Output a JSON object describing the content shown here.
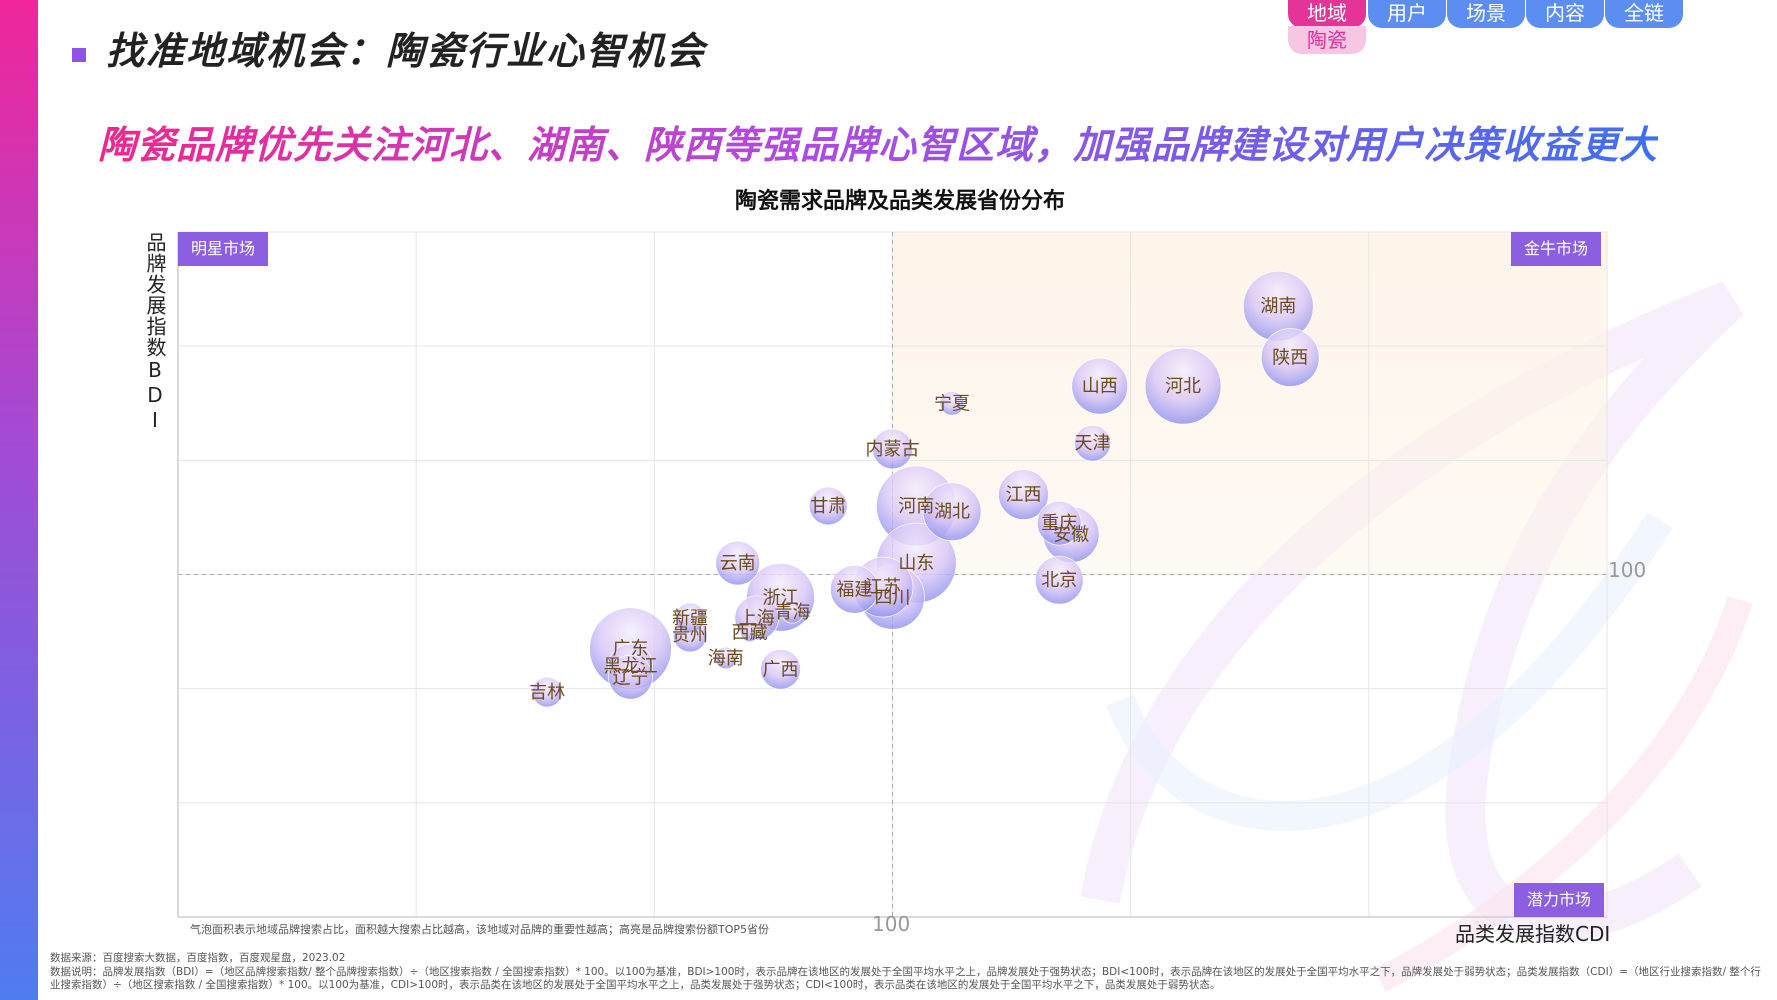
{
  "page_title": "找准地域机会：陶瓷行业心智机会",
  "headline": "陶瓷品牌优先关注河北、湖南、陕西等强品牌心智区域，加强品牌建设对用户决策收益更大",
  "nav": {
    "tabs": [
      "地域",
      "用户",
      "场景",
      "内容",
      "全链"
    ],
    "active": "地域",
    "sub_tab": "陶瓷",
    "colors": {
      "active": "#e43497",
      "inactive": "#5b8ef0",
      "sub_bg": "#f6c6e3"
    }
  },
  "quadrants": {
    "top_left": "明星市场",
    "top_right": "金牛市场",
    "bottom_right": "潜力市场"
  },
  "bubble_note": "气泡面积表示地域品牌搜索占比，面积越大搜索占比越高，该地域对品牌的重要性越高；高亮是品牌搜索份额TOP5省份",
  "footer": {
    "source": "数据来源：百度搜索大数据，百度指数，百度观星盘，2023.02",
    "note": "数据说明：品牌发展指数（BDI）=（地区品牌搜索指数/ 整个品牌搜索指数）÷（地区搜索指数 / 全国搜索指数）* 100。以100为基准，BDI>100时，表示品牌在该地区的发展处于全国平均水平之上，品牌发展处于强势状态；BDI<100时，表示品牌在该地区的发展处于全国平均水平之下，品牌发展处于弱势状态；品类发展指数（CDI）=（地区行业搜索指数/ 整个行业搜索指数）÷（地区搜索指数 / 全国搜索指数）* 100。以100为基准，CDI>100时，表示品类在该地区的发展处于全国平均水平之上，品类发展处于强势状态；CDI<100时，表示品类在该地区的发展处于全国平均水平之下，品类发展处于弱势状态。"
  },
  "chart_data": {
    "type": "scatter",
    "title": "陶瓷需求品牌及品类发展省份分布",
    "xlabel": "品类发展指数CDI",
    "ylabel": "品牌发展指数BDI",
    "reference_x": 100,
    "reference_y": 100,
    "reference_x_label": "100",
    "reference_y_label": "100",
    "xlim": [
      70,
      130
    ],
    "ylim": [
      70,
      130
    ],
    "grid": true,
    "series": [
      {
        "points": [
          {
            "name": "湖南",
            "x": 116.2,
            "y": 123.5,
            "size": 35
          },
          {
            "name": "陕西",
            "x": 116.7,
            "y": 119.0,
            "size": 29
          },
          {
            "name": "河北",
            "x": 112.2,
            "y": 116.5,
            "size": 38
          },
          {
            "name": "山西",
            "x": 108.7,
            "y": 116.5,
            "size": 28
          },
          {
            "name": "宁夏",
            "x": 102.5,
            "y": 115.0,
            "size": 12
          },
          {
            "name": "天津",
            "x": 108.4,
            "y": 111.5,
            "size": 18
          },
          {
            "name": "内蒙古",
            "x": 100.0,
            "y": 111.0,
            "size": 20
          },
          {
            "name": "江西",
            "x": 105.5,
            "y": 107.0,
            "size": 25
          },
          {
            "name": "甘肃",
            "x": 97.3,
            "y": 106.0,
            "size": 19
          },
          {
            "name": "河南",
            "x": 101.0,
            "y": 106.0,
            "size": 40
          },
          {
            "name": "湖北",
            "x": 102.5,
            "y": 105.5,
            "size": 29
          },
          {
            "name": "重庆",
            "x": 107.0,
            "y": 104.5,
            "size": 22
          },
          {
            "name": "安徽",
            "x": 107.5,
            "y": 103.5,
            "size": 28
          },
          {
            "name": "云南",
            "x": 93.5,
            "y": 101.0,
            "size": 22
          },
          {
            "name": "山东",
            "x": 101.0,
            "y": 101.0,
            "size": 40
          },
          {
            "name": "北京",
            "x": 107.0,
            "y": 99.5,
            "size": 24
          },
          {
            "name": "福建",
            "x": 98.4,
            "y": 98.7,
            "size": 24
          },
          {
            "name": "江苏",
            "x": 99.6,
            "y": 98.9,
            "size": 30
          },
          {
            "name": "四川",
            "x": 100.0,
            "y": 98.0,
            "size": 32
          },
          {
            "name": "浙江",
            "x": 95.3,
            "y": 98.0,
            "size": 34
          },
          {
            "name": "青海",
            "x": 95.8,
            "y": 96.7,
            "size": 11
          },
          {
            "name": "上海",
            "x": 94.3,
            "y": 96.2,
            "size": 22
          },
          {
            "name": "新疆",
            "x": 91.5,
            "y": 96.2,
            "size": 15
          },
          {
            "name": "西藏",
            "x": 94.0,
            "y": 94.9,
            "size": 9
          },
          {
            "name": "贵州",
            "x": 91.5,
            "y": 94.7,
            "size": 17
          },
          {
            "name": "广东",
            "x": 89.0,
            "y": 93.5,
            "size": 41
          },
          {
            "name": "海南",
            "x": 93.0,
            "y": 92.7,
            "size": 11
          },
          {
            "name": "黑龙江",
            "x": 89.0,
            "y": 92.0,
            "size": 22
          },
          {
            "name": "广西",
            "x": 95.3,
            "y": 91.7,
            "size": 20
          },
          {
            "name": "辽宁",
            "x": 89.0,
            "y": 91.0,
            "size": 22
          },
          {
            "name": "吉林",
            "x": 85.5,
            "y": 89.7,
            "size": 15
          }
        ]
      }
    ]
  }
}
